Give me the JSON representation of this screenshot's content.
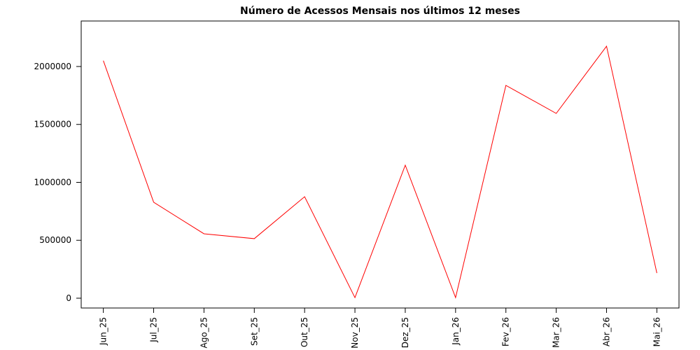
{
  "chart_data": {
    "type": "line",
    "title": "Número de Acessos Mensais nos últimos 12 meses",
    "categories": [
      "Jun_25",
      "Jul_25",
      "Ago_25",
      "Set_25",
      "Out_25",
      "Nov_25",
      "Dez_25",
      "Jan_26",
      "Fev_26",
      "Mar_26",
      "Abr_26",
      "Mai_26"
    ],
    "values": [
      2050000,
      828000,
      556000,
      514000,
      876000,
      5000,
      1148000,
      5000,
      1837000,
      1595000,
      2175000,
      217000
    ],
    "color": "#ff0000",
    "ylim": [
      -84600,
      2392700
    ],
    "yticks": [
      0,
      500000,
      1000000,
      1500000,
      2000000
    ]
  }
}
